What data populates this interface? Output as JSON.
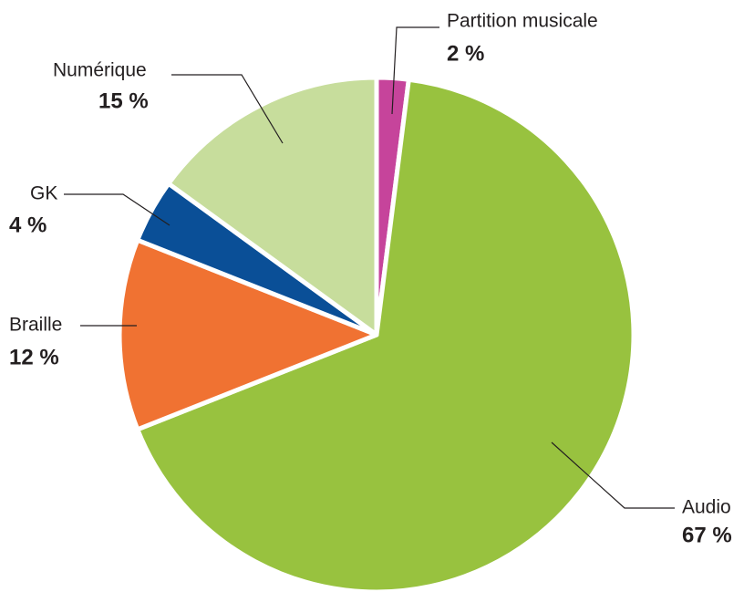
{
  "chart_data": {
    "type": "pie",
    "categories": [
      "Partition musicale",
      "Audio",
      "Braille",
      "GK",
      "Numérique"
    ],
    "values": [
      2,
      67,
      12,
      4,
      15
    ],
    "value_labels": [
      "2 %",
      "67 %",
      "12 %",
      "4 %",
      "15 %"
    ],
    "colors": [
      "#c6449b",
      "#98c23f",
      "#f07232",
      "#0a4f97",
      "#c7dd9c"
    ]
  }
}
